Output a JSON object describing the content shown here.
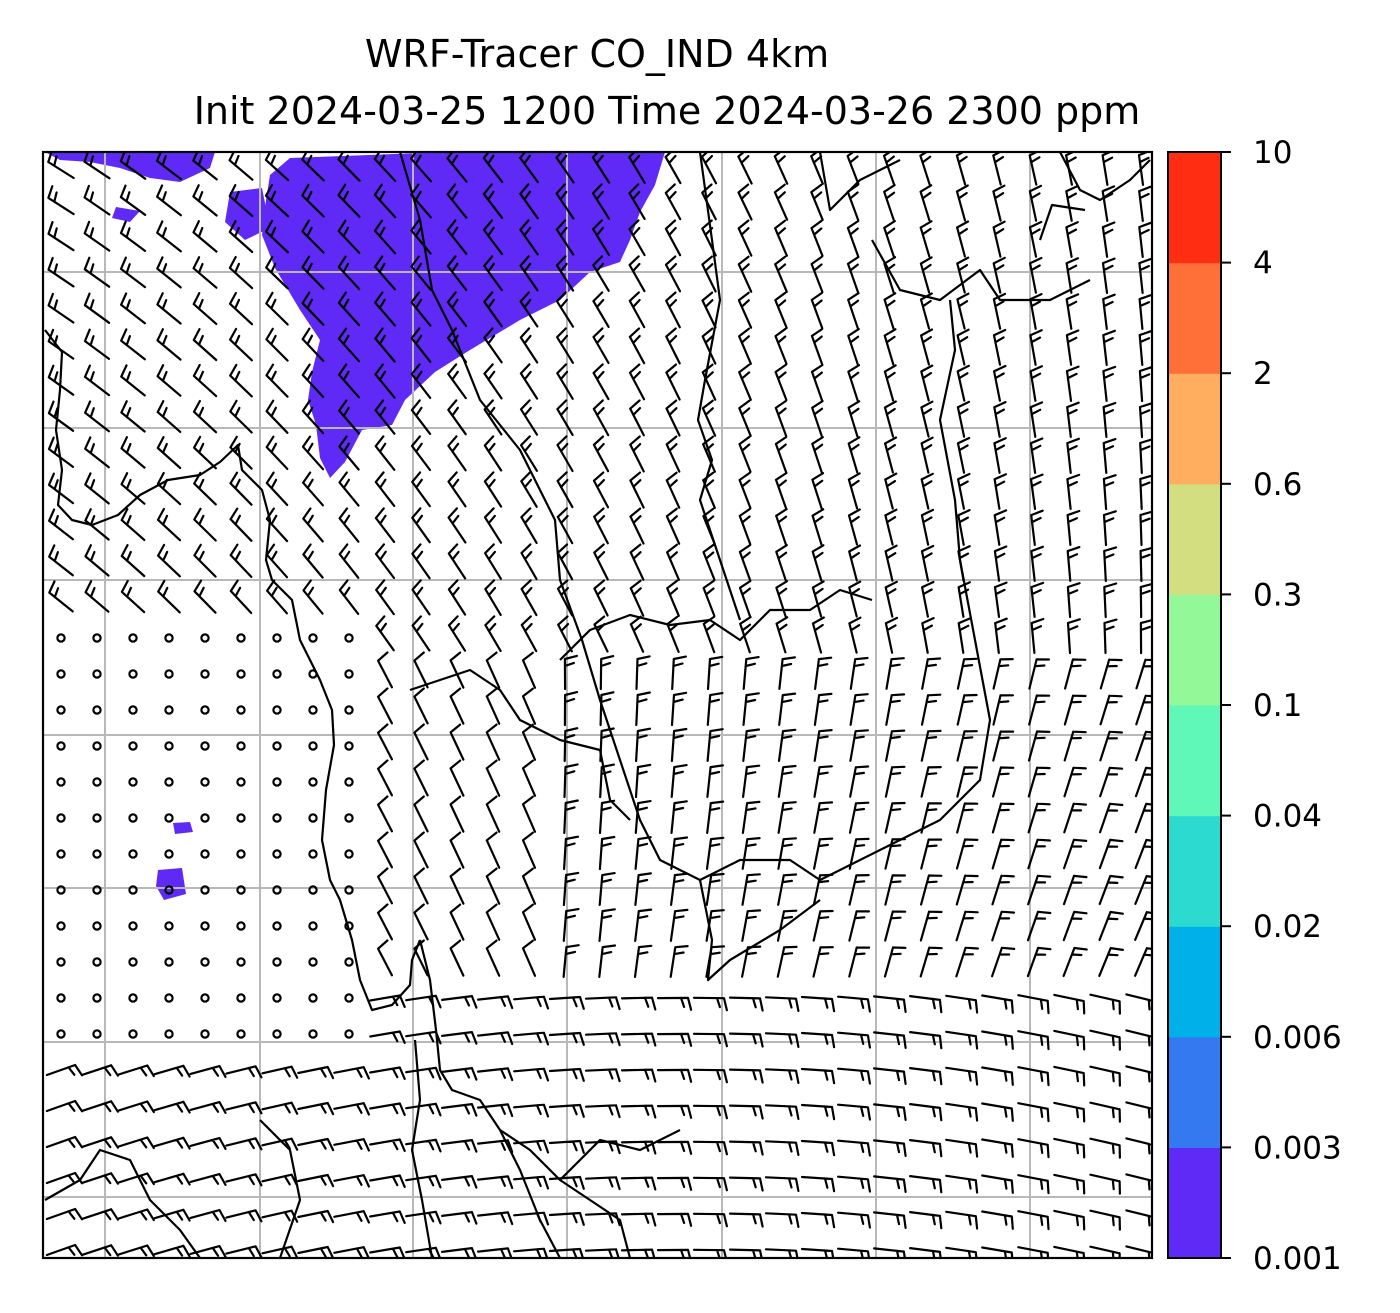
{
  "title": {
    "line1": "WRF-Tracer CO_IND 4km",
    "line2": "Init 2024-03-25 1200 Time 2024-03-26 2300 ppm"
  },
  "colorbar": {
    "levels": [
      "0.001",
      "0.003",
      "0.006",
      "0.02",
      "0.04",
      "0.1",
      "0.3",
      "0.6",
      "2",
      "4",
      "10"
    ],
    "colors": [
      "#5f2af6",
      "#3579f0",
      "#00b0e8",
      "#2cdad0",
      "#5ff8b8",
      "#92f898",
      "#d2de80",
      "#ffae60",
      "#ff7038",
      "#ff2e12"
    ]
  },
  "map": {
    "background": "#ffffff",
    "plume_color": "#5f2af6",
    "gridline_color": "#b8b8b8",
    "grid_cols": 7,
    "grid_rows": 7,
    "wind_barbs": true
  }
}
